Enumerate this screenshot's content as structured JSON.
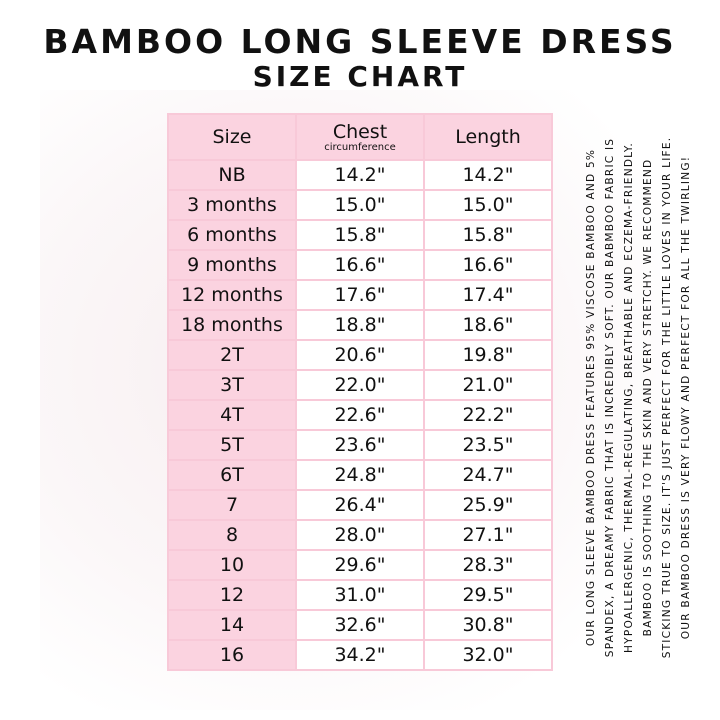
{
  "title": "BAMBOO LONG SLEEVE DRESS",
  "subtitle": "SIZE CHART",
  "table": {
    "headers": {
      "size": "Size",
      "chest": "Chest",
      "chest_sub": "circumference",
      "length": "Length"
    },
    "rows": [
      {
        "size": "NB",
        "chest": "14.2\"",
        "length": "14.2\""
      },
      {
        "size": "3 months",
        "chest": "15.0\"",
        "length": "15.0\""
      },
      {
        "size": "6 months",
        "chest": "15.8\"",
        "length": "15.8\""
      },
      {
        "size": "9 months",
        "chest": "16.6\"",
        "length": "16.6\""
      },
      {
        "size": "12 months",
        "chest": "17.6\"",
        "length": "17.4\""
      },
      {
        "size": "18 months",
        "chest": "18.8\"",
        "length": "18.6\""
      },
      {
        "size": "2T",
        "chest": "20.6\"",
        "length": "19.8\""
      },
      {
        "size": "3T",
        "chest": "22.0\"",
        "length": "21.0\""
      },
      {
        "size": "4T",
        "chest": "22.6\"",
        "length": "22.2\""
      },
      {
        "size": "5T",
        "chest": "23.6\"",
        "length": "23.5\""
      },
      {
        "size": "6T",
        "chest": "24.8\"",
        "length": "24.7\""
      },
      {
        "size": "7",
        "chest": "26.4\"",
        "length": "25.9\""
      },
      {
        "size": "8",
        "chest": "28.0\"",
        "length": "27.1\""
      },
      {
        "size": "10",
        "chest": "29.6\"",
        "length": "28.3\""
      },
      {
        "size": "12",
        "chest": "31.0\"",
        "length": "29.5\""
      },
      {
        "size": "14",
        "chest": "32.6\"",
        "length": "30.8\""
      },
      {
        "size": "16",
        "chest": "34.2\"",
        "length": "32.0\""
      }
    ]
  },
  "description": [
    "OUR LONG SLEEVE BAMBOO DRESS FEATURES 95% VISCOSE BAMBOO AND 5%",
    "SPANDEX, A DREAMY FABRIC THAT IS INCREDIBLY SOFT. OUR BABMBOO FABRIC IS",
    "HYPOALLERGENIC, THERMAL-REGULATING, BREATHABLE AND ECZEMA-FRIENDLY.",
    "BAMBOO IS SOOTHING TO THE SKIN AND VERY STRETCHY. WE RECOMMEND",
    "STICKING TRUE TO SIZE. IT'S JUST PERFECT FOR THE LITTLE LOVES IN YOUR LIFE.",
    "OUR BAMBOO DRESS IS VERY FLOWY AND PERFECT FOR ALL THE TWIRLING!"
  ],
  "colors": {
    "pink": "#fbd3e0",
    "border": "#f8c9d8"
  }
}
